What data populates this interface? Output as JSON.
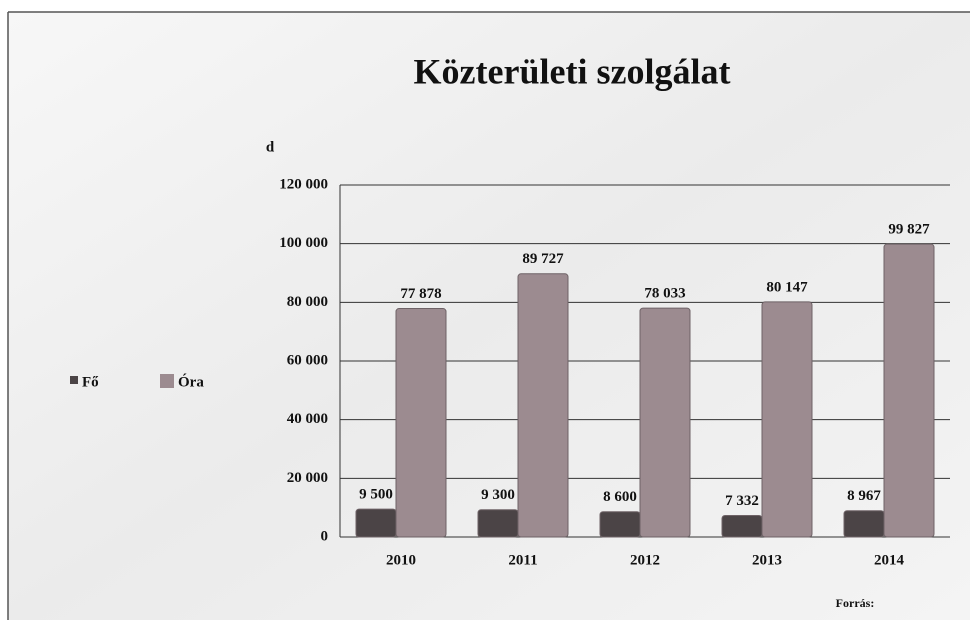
{
  "chart_data": {
    "type": "bar",
    "title": "Közterületi szolgálat",
    "y_label": "d",
    "source": "Forrás:",
    "categories": [
      "2010",
      "2011",
      "2012",
      "2013",
      "2014"
    ],
    "series": [
      {
        "name": "Fő",
        "color": "#4b4446",
        "values": [
          9500,
          9300,
          8600,
          7332,
          8967
        ],
        "value_labels": [
          "9 500",
          "9 300",
          "8 600",
          "7 332",
          "8 967"
        ]
      },
      {
        "name": "Óra",
        "color": "#9c8b90",
        "values": [
          77878,
          89727,
          78033,
          80147,
          99827
        ],
        "value_labels": [
          "77 878",
          "89 727",
          "78 033",
          "80 147",
          "99 827"
        ]
      }
    ],
    "ylim": [
      0,
      120000
    ],
    "yticks": [
      {
        "value": 0,
        "label": "0"
      },
      {
        "value": 20000,
        "label": "20 000"
      },
      {
        "value": 40000,
        "label": "40 000"
      },
      {
        "value": 60000,
        "label": "60 000"
      },
      {
        "value": 80000,
        "label": "80 000"
      },
      {
        "value": 100000,
        "label": "100 000"
      },
      {
        "value": 120000,
        "label": "120 000"
      }
    ],
    "grid": true,
    "legend": "left"
  }
}
